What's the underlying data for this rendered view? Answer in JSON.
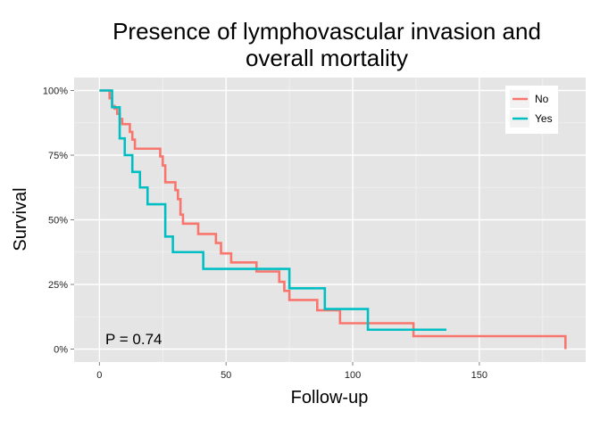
{
  "chart_data": {
    "type": "line",
    "step": true,
    "title": [
      "Presence of lymphovascular invasion and",
      "overall mortality"
    ],
    "xlabel": "Follow-up",
    "ylabel": "Survival",
    "xlim": [
      -10,
      192
    ],
    "ylim": [
      -0.05,
      1.05
    ],
    "x_ticks": [
      0,
      50,
      100,
      150
    ],
    "x_tick_labels": [
      "0",
      "50",
      "100",
      "150"
    ],
    "y_ticks": [
      0,
      0.25,
      0.5,
      0.75,
      1.0
    ],
    "y_tick_labels": [
      "0%",
      "25%",
      "50%",
      "75%",
      "100%"
    ],
    "grid": true,
    "legend_position": "top-right",
    "annotation": "P = 0.74",
    "series": [
      {
        "name": "No",
        "color": "#F8766D",
        "x": [
          0,
          4,
          5,
          6,
          7,
          8,
          9,
          12,
          13,
          14,
          24,
          25,
          26,
          30,
          31,
          32,
          33,
          39,
          46,
          48,
          52,
          62,
          71,
          73,
          75,
          86,
          95,
          124,
          184
        ],
        "y": [
          1.0,
          0.97,
          0.94,
          0.93,
          0.91,
          0.89,
          0.87,
          0.84,
          0.81,
          0.775,
          0.745,
          0.71,
          0.645,
          0.615,
          0.58,
          0.52,
          0.485,
          0.445,
          0.41,
          0.37,
          0.335,
          0.3,
          0.26,
          0.225,
          0.19,
          0.15,
          0.1,
          0.05,
          0.0
        ]
      },
      {
        "name": "Yes",
        "color": "#00BFC4",
        "x": [
          0,
          5,
          8,
          10,
          13,
          16,
          19,
          26,
          29,
          41,
          75,
          89,
          106,
          137
        ],
        "y": [
          1.0,
          0.935,
          0.815,
          0.75,
          0.685,
          0.625,
          0.56,
          0.435,
          0.375,
          0.31,
          0.235,
          0.155,
          0.075,
          0.075
        ]
      }
    ]
  }
}
